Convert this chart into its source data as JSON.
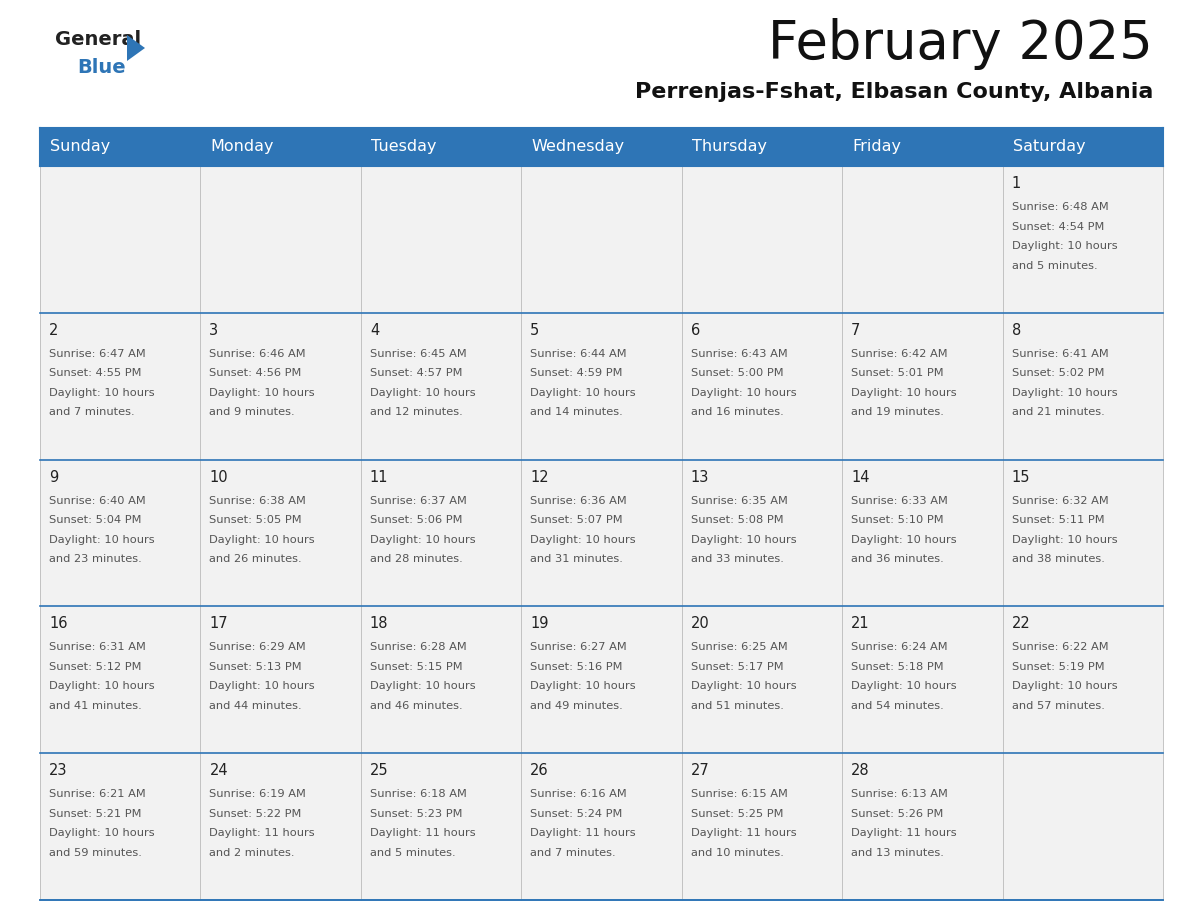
{
  "title": "February 2025",
  "subtitle": "Perrenjas-Fshat, Elbasan County, Albania",
  "header_color": "#2E75B6",
  "header_text_color": "#FFFFFF",
  "cell_bg": "#F2F2F2",
  "day_headers": [
    "Sunday",
    "Monday",
    "Tuesday",
    "Wednesday",
    "Thursday",
    "Friday",
    "Saturday"
  ],
  "border_color": "#2E75B6",
  "text_color": "#555555",
  "calendar_data": [
    [
      null,
      null,
      null,
      null,
      null,
      null,
      {
        "day": "1",
        "sunrise": "6:48 AM",
        "sunset": "4:54 PM",
        "daylight": "10 hours and 5 minutes."
      }
    ],
    [
      {
        "day": "2",
        "sunrise": "6:47 AM",
        "sunset": "4:55 PM",
        "daylight": "10 hours and 7 minutes."
      },
      {
        "day": "3",
        "sunrise": "6:46 AM",
        "sunset": "4:56 PM",
        "daylight": "10 hours and 9 minutes."
      },
      {
        "day": "4",
        "sunrise": "6:45 AM",
        "sunset": "4:57 PM",
        "daylight": "10 hours and 12 minutes."
      },
      {
        "day": "5",
        "sunrise": "6:44 AM",
        "sunset": "4:59 PM",
        "daylight": "10 hours and 14 minutes."
      },
      {
        "day": "6",
        "sunrise": "6:43 AM",
        "sunset": "5:00 PM",
        "daylight": "10 hours and 16 minutes."
      },
      {
        "day": "7",
        "sunrise": "6:42 AM",
        "sunset": "5:01 PM",
        "daylight": "10 hours and 19 minutes."
      },
      {
        "day": "8",
        "sunrise": "6:41 AM",
        "sunset": "5:02 PM",
        "daylight": "10 hours and 21 minutes."
      }
    ],
    [
      {
        "day": "9",
        "sunrise": "6:40 AM",
        "sunset": "5:04 PM",
        "daylight": "10 hours and 23 minutes."
      },
      {
        "day": "10",
        "sunrise": "6:38 AM",
        "sunset": "5:05 PM",
        "daylight": "10 hours and 26 minutes."
      },
      {
        "day": "11",
        "sunrise": "6:37 AM",
        "sunset": "5:06 PM",
        "daylight": "10 hours and 28 minutes."
      },
      {
        "day": "12",
        "sunrise": "6:36 AM",
        "sunset": "5:07 PM",
        "daylight": "10 hours and 31 minutes."
      },
      {
        "day": "13",
        "sunrise": "6:35 AM",
        "sunset": "5:08 PM",
        "daylight": "10 hours and 33 minutes."
      },
      {
        "day": "14",
        "sunrise": "6:33 AM",
        "sunset": "5:10 PM",
        "daylight": "10 hours and 36 minutes."
      },
      {
        "day": "15",
        "sunrise": "6:32 AM",
        "sunset": "5:11 PM",
        "daylight": "10 hours and 38 minutes."
      }
    ],
    [
      {
        "day": "16",
        "sunrise": "6:31 AM",
        "sunset": "5:12 PM",
        "daylight": "10 hours and 41 minutes."
      },
      {
        "day": "17",
        "sunrise": "6:29 AM",
        "sunset": "5:13 PM",
        "daylight": "10 hours and 44 minutes."
      },
      {
        "day": "18",
        "sunrise": "6:28 AM",
        "sunset": "5:15 PM",
        "daylight": "10 hours and 46 minutes."
      },
      {
        "day": "19",
        "sunrise": "6:27 AM",
        "sunset": "5:16 PM",
        "daylight": "10 hours and 49 minutes."
      },
      {
        "day": "20",
        "sunrise": "6:25 AM",
        "sunset": "5:17 PM",
        "daylight": "10 hours and 51 minutes."
      },
      {
        "day": "21",
        "sunrise": "6:24 AM",
        "sunset": "5:18 PM",
        "daylight": "10 hours and 54 minutes."
      },
      {
        "day": "22",
        "sunrise": "6:22 AM",
        "sunset": "5:19 PM",
        "daylight": "10 hours and 57 minutes."
      }
    ],
    [
      {
        "day": "23",
        "sunrise": "6:21 AM",
        "sunset": "5:21 PM",
        "daylight": "10 hours and 59 minutes."
      },
      {
        "day": "24",
        "sunrise": "6:19 AM",
        "sunset": "5:22 PM",
        "daylight": "11 hours and 2 minutes."
      },
      {
        "day": "25",
        "sunrise": "6:18 AM",
        "sunset": "5:23 PM",
        "daylight": "11 hours and 5 minutes."
      },
      {
        "day": "26",
        "sunrise": "6:16 AM",
        "sunset": "5:24 PM",
        "daylight": "11 hours and 7 minutes."
      },
      {
        "day": "27",
        "sunrise": "6:15 AM",
        "sunset": "5:25 PM",
        "daylight": "11 hours and 10 minutes."
      },
      {
        "day": "28",
        "sunrise": "6:13 AM",
        "sunset": "5:26 PM",
        "daylight": "11 hours and 13 minutes."
      },
      null
    ]
  ]
}
